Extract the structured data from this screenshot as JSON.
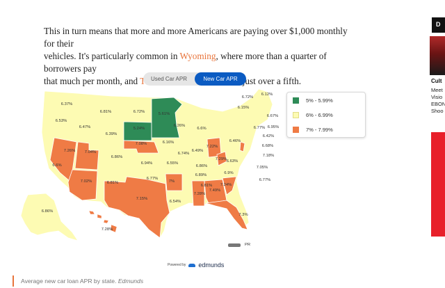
{
  "article": {
    "line1": "This in turn means that more and more Americans are paying over $1,000 monthly for their",
    "line2_before": "vehicles. It's particularly common in ",
    "link_wyoming": "Wyoming",
    "line2_after": ", where more than a quarter of borrowers pay",
    "line3_before": "that much per month, and ",
    "link_texas": "Texas",
    "line3_after": ", where that fraction's just over a fifth."
  },
  "toggle": {
    "used_label": "Used Car APR",
    "new_label": "New Car APR",
    "selected": "New Car APR"
  },
  "legend": [
    {
      "label": "5% - 5.99%",
      "color": "#2e8b57"
    },
    {
      "label": "6% - 6.99%",
      "color": "#fdfbb3"
    },
    {
      "label": "7% - 7.99%",
      "color": "#ef7b45"
    }
  ],
  "chart_data": {
    "type": "choropleth",
    "title": "Average new car loan APR by state",
    "states": [
      {
        "state": "WA",
        "apr": "6.37%"
      },
      {
        "state": "OR",
        "apr": "6.53%"
      },
      {
        "state": "ID",
        "apr": "6.47%"
      },
      {
        "state": "MT",
        "apr": "6.81%"
      },
      {
        "state": "WY",
        "apr": "6.39%"
      },
      {
        "state": "ND",
        "apr": "6.72%"
      },
      {
        "state": "SD",
        "apr": "5.24%"
      },
      {
        "state": "MN",
        "apr": "5.61%"
      },
      {
        "state": "WI",
        "apr": "6.26%"
      },
      {
        "state": "MI",
        "apr": "6.6%"
      },
      {
        "state": "NE",
        "apr": "7.08%"
      },
      {
        "state": "IA",
        "apr": "6.16%"
      },
      {
        "state": "IL",
        "apr": "6.74%"
      },
      {
        "state": "IN",
        "apr": "6.49%"
      },
      {
        "state": "OH",
        "apr": "7.22%"
      },
      {
        "state": "NV",
        "apr": "7.26%"
      },
      {
        "state": "UT",
        "apr": "7.04%"
      },
      {
        "state": "CO",
        "apr": "6.86%"
      },
      {
        "state": "CA",
        "apr": "6.6%"
      },
      {
        "state": "KS",
        "apr": "6.94%"
      },
      {
        "state": "MO",
        "apr": "6.55%"
      },
      {
        "state": "KY",
        "apr": "6.86%"
      },
      {
        "state": "WV",
        "apr": "7.29%"
      },
      {
        "state": "VA",
        "apr": "6.63%"
      },
      {
        "state": "AZ",
        "apr": "7.02%"
      },
      {
        "state": "NM",
        "apr": "6.81%"
      },
      {
        "state": "OK",
        "apr": "6.77%"
      },
      {
        "state": "AR",
        "apr": "7%"
      },
      {
        "state": "TN",
        "apr": "6.89%"
      },
      {
        "state": "NC",
        "apr": "6.9%"
      },
      {
        "state": "TX",
        "apr": "7.15%"
      },
      {
        "state": "LA",
        "apr": "6.54%"
      },
      {
        "state": "MS",
        "apr": "7.28%"
      },
      {
        "state": "AL",
        "apr": "6.81%"
      },
      {
        "state": "GA",
        "apr": "7.49%"
      },
      {
        "state": "SC",
        "apr": "7.24%"
      },
      {
        "state": "FL",
        "apr": "7.3%"
      },
      {
        "state": "AK",
        "apr": "6.86%"
      },
      {
        "state": "HI",
        "apr": "7.28%"
      },
      {
        "state": "ME",
        "apr": "6.12%"
      },
      {
        "state": "NH",
        "apr": "6.15%"
      },
      {
        "state": "VT",
        "apr": "6.72%"
      },
      {
        "state": "NY",
        "apr": "6.77%"
      },
      {
        "state": "MA",
        "apr": "6.67%"
      },
      {
        "state": "RI",
        "apr": "6.95%"
      },
      {
        "state": "CT",
        "apr": "6.42%"
      },
      {
        "state": "PA",
        "apr": "6.46%"
      },
      {
        "state": "NJ",
        "apr": "6.68%"
      },
      {
        "state": "DE",
        "apr": "7.18%"
      },
      {
        "state": "MD",
        "apr": "7.05%"
      },
      {
        "state": "DC",
        "apr": "6.77%"
      },
      {
        "state": "PR",
        "apr": "PR"
      }
    ]
  },
  "powered_by": {
    "prefix": "Powered by",
    "brand": "edmunds"
  },
  "caption": {
    "text": "Average new car loan APR by state. ",
    "source": "Edmunds"
  },
  "sidebar": {
    "label": "D",
    "title": "Cult",
    "lines": [
      "Meet",
      "Visio",
      "EBON",
      "Shoo"
    ]
  }
}
